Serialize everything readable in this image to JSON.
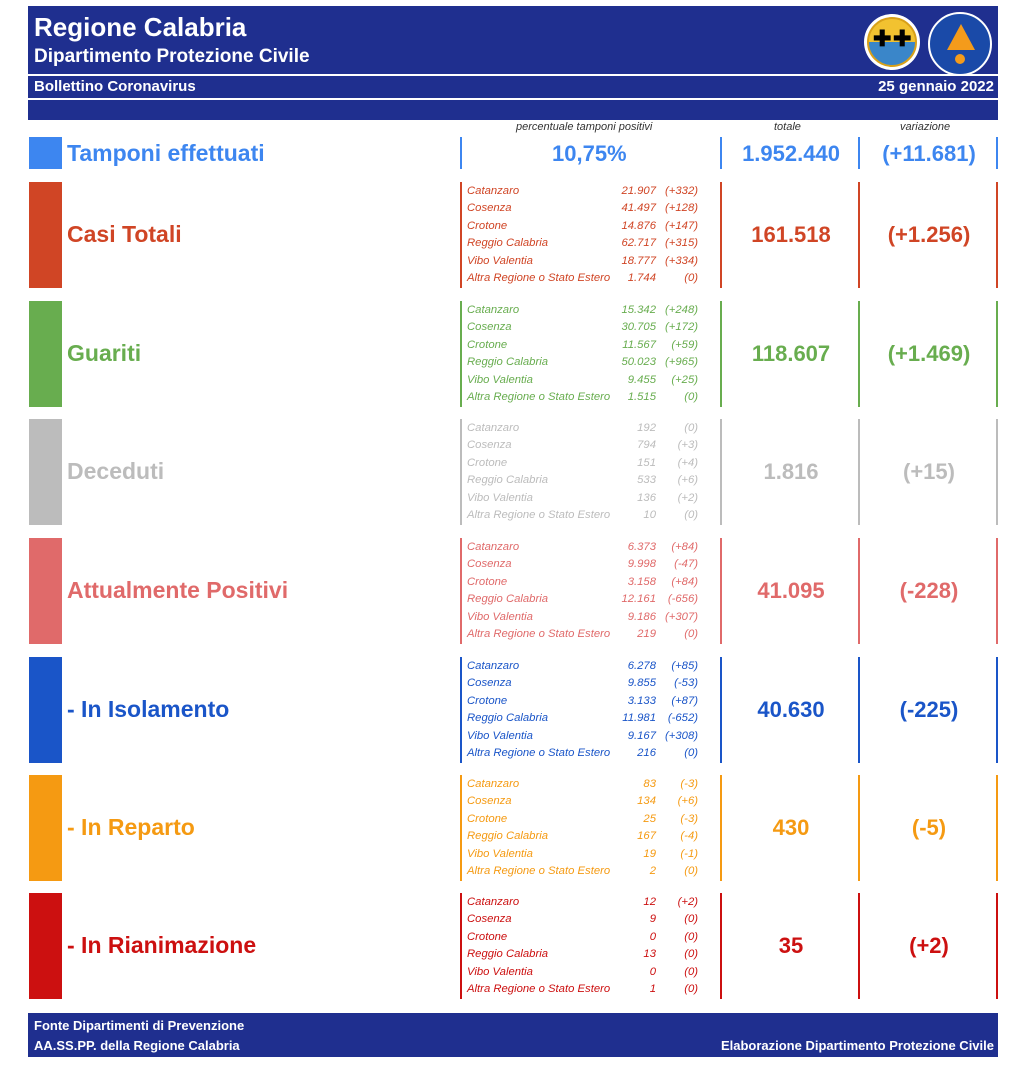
{
  "header": {
    "title": "Regione Calabria",
    "subtitle": "Dipartimento Protezione Civile",
    "bulletin": "Bollettino Coronavirus",
    "date": "25 gennaio 2022"
  },
  "columns": {
    "percent_label": "percentuale tamponi positivi",
    "total_label": "totale",
    "variation_label": "variazione"
  },
  "tamponi": {
    "label": "Tamponi effettuati",
    "percent": "10,75%",
    "total": "1.952.440",
    "variation": "(+11.681)",
    "color": "#3d86f0"
  },
  "sections": [
    {
      "label": "Casi Totali",
      "color": "#d04525",
      "total": "161.518",
      "variation": "(+1.256)",
      "rows": [
        {
          "place": "Catanzaro",
          "value": "21.907",
          "delta": "(+332)"
        },
        {
          "place": "Cosenza",
          "value": "41.497",
          "delta": "(+128)"
        },
        {
          "place": "Crotone",
          "value": "14.876",
          "delta": "(+147)"
        },
        {
          "place": "Reggio Calabria",
          "value": "62.717",
          "delta": "(+315)"
        },
        {
          "place": "Vibo Valentia",
          "value": "18.777",
          "delta": "(+334)"
        },
        {
          "place": "Altra Regione o Stato Estero",
          "value": "1.744",
          "delta": "(0)"
        }
      ]
    },
    {
      "label": "Guariti",
      "color": "#68ad4f",
      "total": "118.607",
      "variation": "(+1.469)",
      "rows": [
        {
          "place": "Catanzaro",
          "value": "15.342",
          "delta": "(+248)"
        },
        {
          "place": "Cosenza",
          "value": "30.705",
          "delta": "(+172)"
        },
        {
          "place": "Crotone",
          "value": "11.567",
          "delta": "(+59)"
        },
        {
          "place": "Reggio Calabria",
          "value": "50.023",
          "delta": "(+965)"
        },
        {
          "place": "Vibo Valentia",
          "value": "9.455",
          "delta": "(+25)"
        },
        {
          "place": "Altra Regione o Stato Estero",
          "value": "1.515",
          "delta": "(0)"
        }
      ]
    },
    {
      "label": "Deceduti",
      "color": "#bcbcbc",
      "total": "1.816",
      "variation": "(+15)",
      "rows": [
        {
          "place": "Catanzaro",
          "value": "192",
          "delta": "(0)"
        },
        {
          "place": "Cosenza",
          "value": "794",
          "delta": "(+3)"
        },
        {
          "place": "Crotone",
          "value": "151",
          "delta": "(+4)"
        },
        {
          "place": "Reggio Calabria",
          "value": "533",
          "delta": "(+6)"
        },
        {
          "place": "Vibo Valentia",
          "value": "136",
          "delta": "(+2)"
        },
        {
          "place": "Altra Regione o Stato Estero",
          "value": "10",
          "delta": "(0)"
        }
      ]
    },
    {
      "label": "Attualmente Positivi",
      "color": "#e06a6a",
      "total": "41.095",
      "variation": "(-228)",
      "rows": [
        {
          "place": "Catanzaro",
          "value": "6.373",
          "delta": "(+84)"
        },
        {
          "place": "Cosenza",
          "value": "9.998",
          "delta": "(-47)"
        },
        {
          "place": "Crotone",
          "value": "3.158",
          "delta": "(+84)"
        },
        {
          "place": "Reggio Calabria",
          "value": "12.161",
          "delta": "(-656)"
        },
        {
          "place": "Vibo Valentia",
          "value": "9.186",
          "delta": "(+307)"
        },
        {
          "place": "Altra Regione o Stato Estero",
          "value": "219",
          "delta": "(0)"
        }
      ]
    },
    {
      "label": "- In Isolamento",
      "color": "#1a55c8",
      "total": "40.630",
      "variation": "(-225)",
      "rows": [
        {
          "place": "Catanzaro",
          "value": "6.278",
          "delta": "(+85)"
        },
        {
          "place": "Cosenza",
          "value": "9.855",
          "delta": "(-53)"
        },
        {
          "place": "Crotone",
          "value": "3.133",
          "delta": "(+87)"
        },
        {
          "place": "Reggio Calabria",
          "value": "11.981",
          "delta": "(-652)"
        },
        {
          "place": "Vibo Valentia",
          "value": "9.167",
          "delta": "(+308)"
        },
        {
          "place": "Altra Regione o Stato Estero",
          "value": "216",
          "delta": "(0)"
        }
      ]
    },
    {
      "label": "- In Reparto",
      "color": "#f59a12",
      "total": "430",
      "variation": "(-5)",
      "rows": [
        {
          "place": "Catanzaro",
          "value": "83",
          "delta": "(-3)"
        },
        {
          "place": "Cosenza",
          "value": "134",
          "delta": "(+6)"
        },
        {
          "place": "Crotone",
          "value": "25",
          "delta": "(-3)"
        },
        {
          "place": "Reggio Calabria",
          "value": "167",
          "delta": "(-4)"
        },
        {
          "place": "Vibo Valentia",
          "value": "19",
          "delta": "(-1)"
        },
        {
          "place": "Altra Regione o Stato Estero",
          "value": "2",
          "delta": "(0)"
        }
      ]
    },
    {
      "label": "- In Rianimazione",
      "color": "#cc1010",
      "total": "35",
      "variation": "(+2)",
      "rows": [
        {
          "place": "Catanzaro",
          "value": "12",
          "delta": "(+2)"
        },
        {
          "place": "Cosenza",
          "value": "9",
          "delta": "(0)"
        },
        {
          "place": "Crotone",
          "value": "0",
          "delta": "(0)"
        },
        {
          "place": "Reggio Calabria",
          "value": "13",
          "delta": "(0)"
        },
        {
          "place": "Vibo Valentia",
          "value": "0",
          "delta": "(0)"
        },
        {
          "place": "Altra Regione o Stato Estero",
          "value": "1",
          "delta": "(0)"
        }
      ]
    }
  ],
  "footer": {
    "source_line1": "Fonte Dipartimenti di Prevenzione",
    "source_line2": "AA.SS.PP.  della Regione Calabria",
    "credit": "Elaborazione Dipartimento Protezione Civile"
  }
}
